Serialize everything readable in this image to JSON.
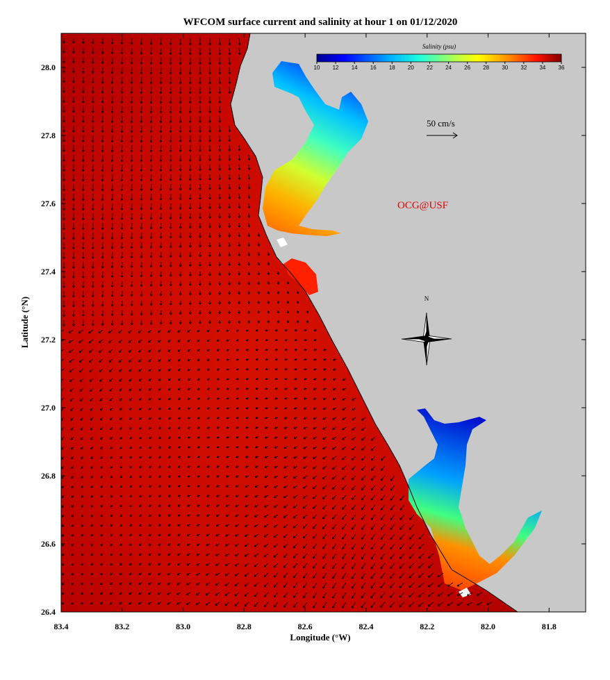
{
  "title": "WFCOM surface current and salinity at hour 1 on 01/12/2020",
  "axes": {
    "x_label": "Longitude (°W)",
    "y_label": "Latitude (°N)",
    "x_ticks": [
      "83.4",
      "83.2",
      "83.0",
      "82.8",
      "82.6",
      "82.4",
      "82.2",
      "82.0",
      "81.8"
    ],
    "y_ticks": [
      "28.0",
      "27.8",
      "27.6",
      "27.4",
      "27.2",
      "27.0",
      "26.8",
      "26.6",
      "26.4"
    ],
    "x_range": [
      83.4,
      81.68
    ],
    "y_range": [
      26.4,
      28.1
    ]
  },
  "colorbar": {
    "title": "Salinity (psu)",
    "min": 10,
    "max": 36,
    "labels": [
      "10",
      "12",
      "14",
      "16",
      "18",
      "20",
      "22",
      "24",
      "26",
      "28",
      "30",
      "32",
      "34",
      "36"
    ]
  },
  "scale": {
    "label": "50 cm/s"
  },
  "credit": "OCG@USF",
  "compass": {
    "label": "N"
  },
  "colors": {
    "land": "#c8c8c8",
    "ocean_deep": "#c00000",
    "ocean_mid": "#dd1000",
    "arrow": "#000000",
    "credit": "#e00000"
  }
}
